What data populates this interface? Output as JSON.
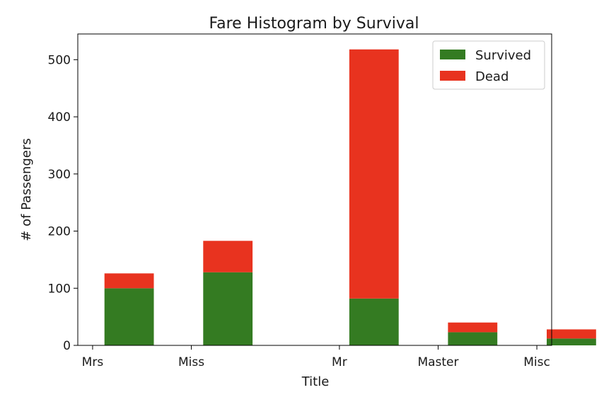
{
  "chart_data": {
    "type": "bar",
    "stacked": true,
    "title": "Fare Histogram by Survival",
    "xlabel": "Title",
    "ylabel": "# of Passengers",
    "x_ticks": [
      {
        "label": "Mrs",
        "x": 0.0
      },
      {
        "label": "Miss",
        "x": 1.0
      },
      {
        "label": "Mr",
        "x": 2.5
      },
      {
        "label": "Master",
        "x": 3.5
      },
      {
        "label": "Misc",
        "x": 4.5
      }
    ],
    "xlim": [
      -0.15,
      4.65
    ],
    "ylim": [
      0,
      545
    ],
    "y_ticks": [
      0,
      100,
      200,
      300,
      400,
      500
    ],
    "grid": false,
    "legend": {
      "position": "top-right"
    },
    "bars": [
      {
        "category": "Mrs",
        "x_start": 0.12,
        "x_end": 0.62
      },
      {
        "category": "Miss",
        "x_start": 1.12,
        "x_end": 1.62
      },
      {
        "category": "Mr",
        "x_start": 2.6,
        "x_end": 3.1
      },
      {
        "category": "Master",
        "x_start": 3.6,
        "x_end": 4.1
      },
      {
        "category": "Misc",
        "x_start": 4.6,
        "x_end": 5.1
      }
    ],
    "series": [
      {
        "name": "Survived",
        "color": "#347b22",
        "values": [
          100,
          128,
          82,
          23,
          12
        ]
      },
      {
        "name": "Dead",
        "color": "#e8331f",
        "values": [
          26,
          55,
          436,
          17,
          16
        ]
      }
    ]
  }
}
